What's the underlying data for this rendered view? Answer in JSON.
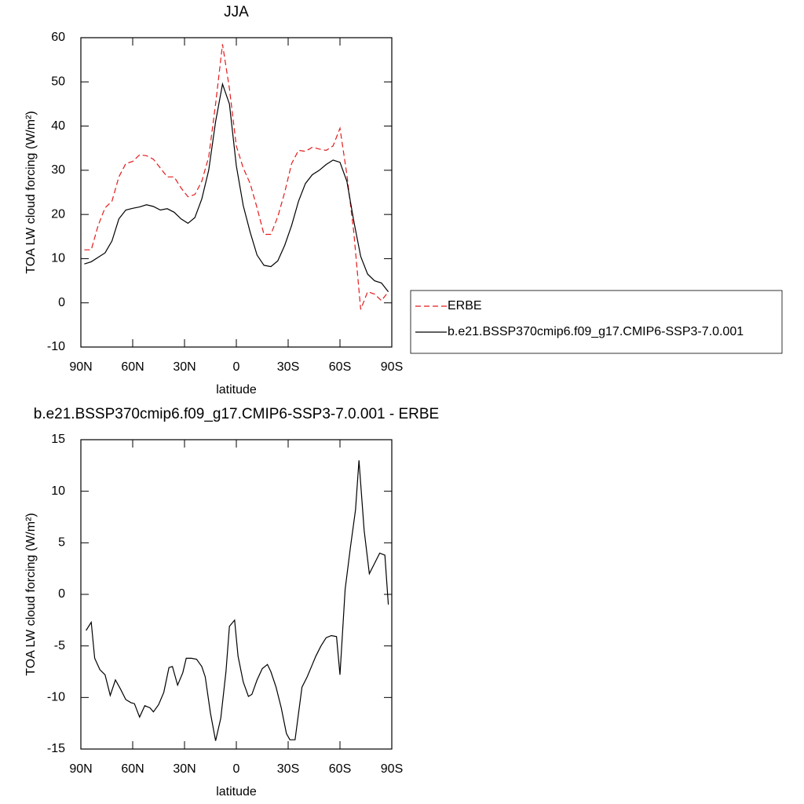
{
  "chart_data": [
    {
      "type": "line",
      "title": "JJA",
      "xlabel": "latitude",
      "ylabel": "TOA LW cloud forcing (W/m²)",
      "x": [
        88,
        84,
        80,
        76,
        72,
        68,
        64,
        60,
        56,
        52,
        48,
        44,
        40,
        36,
        32,
        28,
        24,
        20,
        16,
        12,
        8,
        4,
        0,
        -4,
        -8,
        -12,
        -16,
        -20,
        -24,
        -28,
        -32,
        -36,
        -40,
        -44,
        -48,
        -52,
        -56,
        -60,
        -64,
        -68,
        -72,
        -76,
        -80,
        -84,
        -88
      ],
      "xlim": [
        90,
        -90
      ],
      "xticks": [
        {
          "value": 90,
          "label": "90N"
        },
        {
          "value": 60,
          "label": "60N"
        },
        {
          "value": 30,
          "label": "30N"
        },
        0,
        {
          "value": -30,
          "label": "30S"
        },
        {
          "value": -60,
          "label": "60S"
        },
        {
          "value": -90,
          "label": "90S"
        }
      ],
      "ylim": [
        -10,
        60
      ],
      "yticks": [
        -10,
        0,
        10,
        20,
        30,
        40,
        50,
        60
      ],
      "legend": "right",
      "series": [
        {
          "name": "ERBE",
          "color": "#e41a1c",
          "dash": "dashed",
          "values": [
            12,
            12,
            17.5,
            21.5,
            23,
            28.5,
            31.5,
            32,
            33.5,
            33.3,
            32.5,
            30.5,
            28.5,
            28.5,
            26,
            24,
            24.5,
            27.5,
            33,
            45,
            58.5,
            48.5,
            35.5,
            30.5,
            27,
            21.5,
            15.5,
            15.5,
            19.5,
            25,
            31.5,
            34.5,
            34.3,
            35.2,
            34.8,
            34.5,
            35.5,
            39.5,
            29,
            16,
            -1.5,
            2.5,
            2,
            0.5,
            2.5
          ]
        },
        {
          "name": "b.e21.BSSP370cmip6.f09_g17.CMIP6-SSP3-7.0.001",
          "color": "#000000",
          "dash": "solid",
          "values": [
            8.8,
            9.3,
            10.3,
            11.3,
            14,
            19,
            21,
            21.4,
            21.7,
            22.2,
            21.8,
            21,
            21.3,
            20.5,
            19,
            18,
            19.3,
            23.5,
            30,
            41,
            49.5,
            45,
            31,
            22,
            16,
            10.8,
            8.5,
            8.2,
            9.5,
            13,
            17.5,
            23,
            27,
            29,
            30,
            31.3,
            32.3,
            31.8,
            27.5,
            18.5,
            10.5,
            6.5,
            5,
            4.5,
            2.5
          ]
        }
      ]
    },
    {
      "type": "line",
      "title": "b.e21.BSSP370cmip6.f09_g17.CMIP6-SSP3-7.0.001 - ERBE",
      "xlabel": "latitude",
      "ylabel": "TOA LW cloud forcing (W/m²)",
      "x": [
        87,
        84,
        82,
        79,
        76,
        73,
        70,
        67,
        64,
        61,
        59,
        56,
        53,
        50,
        48,
        45,
        42,
        39,
        37,
        34,
        31,
        29,
        26,
        23,
        20,
        18,
        15,
        12,
        9,
        6,
        4,
        1,
        -1,
        -4,
        -7,
        -9,
        -12,
        -15,
        -18,
        -20,
        -23,
        -26,
        -29,
        -31,
        -34,
        -38,
        -41,
        -44,
        -46,
        -49,
        -52,
        -55,
        -58,
        -60,
        -63,
        -66,
        -69,
        -71,
        -74,
        -77,
        -80,
        -83,
        -86,
        -88
      ],
      "xlim": [
        90,
        -90
      ],
      "xticks": [
        {
          "value": 90,
          "label": "90N"
        },
        {
          "value": 60,
          "label": "60N"
        },
        {
          "value": 30,
          "label": "30N"
        },
        0,
        {
          "value": -30,
          "label": "30S"
        },
        {
          "value": -60,
          "label": "60S"
        },
        {
          "value": -90,
          "label": "90S"
        }
      ],
      "ylim": [
        -15,
        15
      ],
      "yticks": [
        -15,
        -10,
        -5,
        0,
        5,
        10,
        15
      ],
      "series": [
        {
          "color": "#000000",
          "dash": "solid",
          "values": [
            -3.5,
            -2.7,
            -6.2,
            -7.3,
            -7.8,
            -9.8,
            -8.3,
            -9.2,
            -10.2,
            -10.5,
            -10.6,
            -11.9,
            -10.8,
            -11,
            -11.4,
            -10.7,
            -9.5,
            -7.1,
            -7,
            -8.8,
            -7.6,
            -6.2,
            -6.2,
            -6.3,
            -7,
            -8,
            -11.5,
            -14.2,
            -12,
            -7.5,
            -3.1,
            -2.5,
            -6,
            -8.5,
            -9.9,
            -9.7,
            -8.3,
            -7.2,
            -6.8,
            -7.5,
            -9,
            -11,
            -13.5,
            -14.1,
            -14.1,
            -9,
            -8,
            -6.8,
            -6,
            -5,
            -4.2,
            -4,
            -4.1,
            -7.8,
            0.5,
            4.5,
            8.2,
            13,
            6.2,
            2,
            3,
            4,
            3.8,
            -1
          ]
        }
      ]
    }
  ]
}
